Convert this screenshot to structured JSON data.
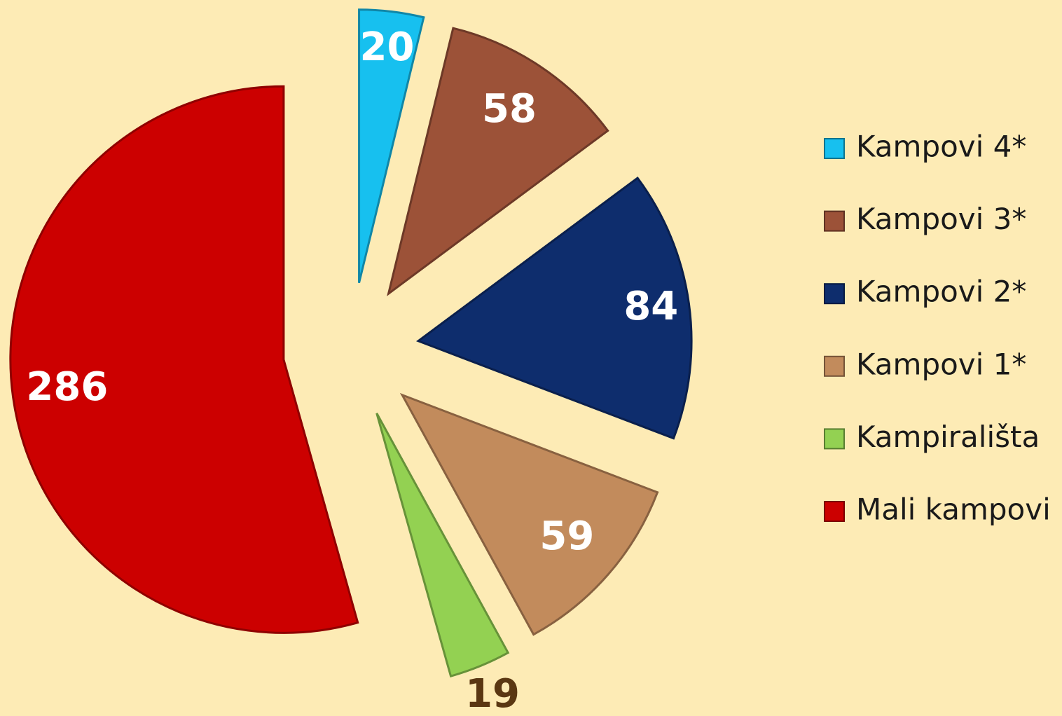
{
  "chart_data": {
    "type": "pie",
    "categories": [
      "Kampovi 4*",
      "Kampovi 3*",
      "Kampovi 2*",
      "Kampovi 1*",
      "Kampirališta",
      "Mali kampovi"
    ],
    "values": [
      20,
      58,
      84,
      59,
      19,
      286
    ],
    "colors": [
      "#17c0ef",
      "#9c5238",
      "#0e2d6d",
      "#c28b5c",
      "#93d152",
      "#cc0000"
    ],
    "legend": "right"
  }
}
